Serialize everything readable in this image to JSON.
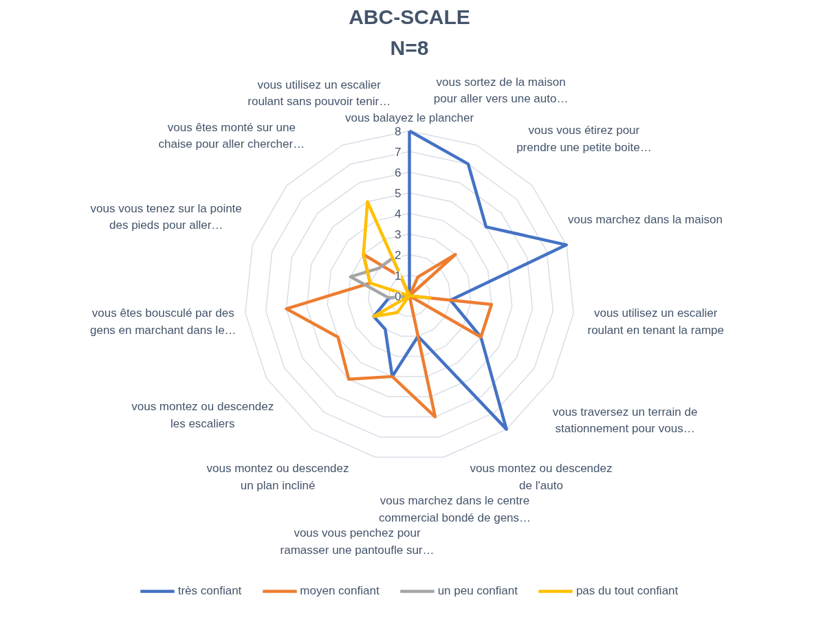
{
  "chart_data": {
    "type": "radar",
    "title": "ABC-SCALE",
    "subtitle": "N=8",
    "categories": [
      "vous balayez le plancher",
      "vous sortez de la maison\npour aller vers une auto…",
      "vous vous étirez pour\nprendre une petite boite…",
      "vous marchez dans la maison",
      "vous utilisez un escalier\nroulant en tenant la rampe",
      "vous traversez un terrain de\nstationnement pour vous…",
      "vous montez ou descendez\nde l'auto",
      "vous marchez dans le centre\ncommercial bondé de gens…",
      "vous vous penchez pour\nramasser une pantoufle sur…",
      "vous montez ou descendez\nun plan incliné",
      "vous montez ou descendez\nles escaliers",
      "vous êtes bousculé par des\ngens en marchant dans le…",
      "vous vous tenez sur la pointe\ndes pieds pour aller…",
      "vous êtes monté sur une\nchaise pour aller chercher…",
      "vous utilisez un escalier\nroulant sans pouvoir tenir…"
    ],
    "series": [
      {
        "name": "très confiant",
        "color": "#4472c4",
        "values": [
          8,
          7,
          5,
          8,
          2,
          4,
          8,
          2,
          4,
          2,
          2,
          1,
          0,
          0,
          0
        ]
      },
      {
        "name": "moyen confiant",
        "color": "#ed7d31",
        "values": [
          0,
          1,
          3,
          0,
          4,
          4,
          0,
          6,
          4,
          5,
          4,
          6,
          2,
          3,
          1
        ]
      },
      {
        "name": "un peu confiant",
        "color": "#a5a5a5",
        "values": [
          0,
          0,
          0,
          0,
          0,
          0,
          0,
          0,
          0,
          0,
          0,
          1,
          3,
          2,
          2
        ]
      },
      {
        "name": "pas du tout confiant",
        "color": "#ffc000",
        "values": [
          0,
          0,
          0,
          0,
          1,
          0,
          0,
          0,
          0,
          1,
          2,
          0,
          2,
          3,
          5
        ]
      }
    ],
    "ylim": [
      0,
      8
    ],
    "yticks": [
      0,
      1,
      2,
      3,
      4,
      5,
      6,
      7,
      8
    ],
    "grid": true,
    "legend": "bottom",
    "line_style": "solid",
    "marker": "none"
  }
}
